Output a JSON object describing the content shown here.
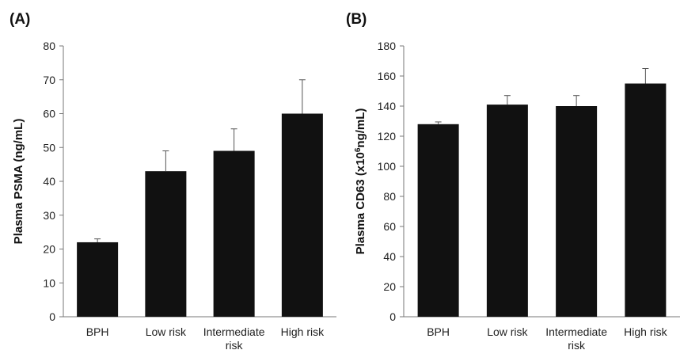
{
  "chart_data": [
    {
      "type": "bar",
      "panel_label": "(A)",
      "ylabel": "Plasma PSMA (ng/mL)",
      "categories": [
        [
          "BPH"
        ],
        [
          "Low risk"
        ],
        [
          "Intermediate",
          "risk"
        ],
        [
          "High risk"
        ]
      ],
      "values": [
        22,
        43,
        49,
        60
      ],
      "errors": [
        1,
        6,
        6.5,
        10
      ],
      "ylim": [
        0,
        80
      ],
      "yticks": [
        0,
        10,
        20,
        30,
        40,
        50,
        60,
        70,
        80
      ],
      "bar_color": "#111111",
      "grid": false
    },
    {
      "type": "bar",
      "panel_label": "(B)",
      "ylabel_main": "Plasma CD63 (x10",
      "ylabel_sup": "6",
      "ylabel_end": "ng/mL)",
      "categories": [
        [
          "BPH"
        ],
        [
          "Low risk"
        ],
        [
          "Intermediate",
          "risk"
        ],
        [
          "High risk"
        ]
      ],
      "values": [
        128,
        141,
        140,
        155
      ],
      "errors": [
        1.5,
        6,
        7,
        10
      ],
      "ylim": [
        0,
        180
      ],
      "yticks": [
        0,
        20,
        40,
        60,
        80,
        100,
        120,
        140,
        160,
        180
      ],
      "bar_color": "#111111",
      "grid": false
    }
  ]
}
